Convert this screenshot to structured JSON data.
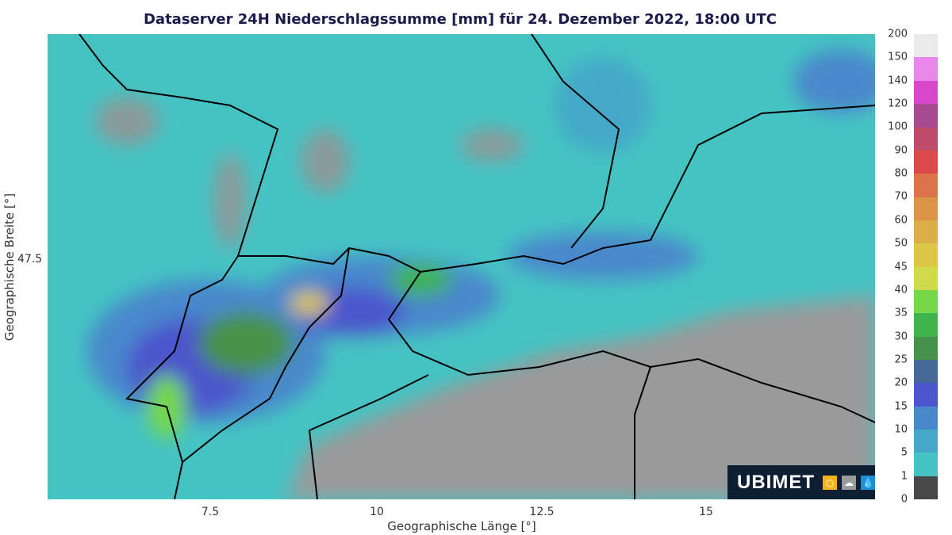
{
  "title": "Dataserver 24H Niederschlagssumme [mm] für 24. Dezember 2022, 18:00 UTC",
  "x_axis": {
    "label": "Geographische Länge [°]",
    "ticks": [
      "7.5",
      "10",
      "12.5",
      "15"
    ]
  },
  "y_axis": {
    "label": "Geographische Breite [°]",
    "ticks": [
      "47.5"
    ]
  },
  "colorbar": {
    "labels": [
      "0",
      "1",
      "5",
      "10",
      "15",
      "20",
      "25",
      "30",
      "35",
      "40",
      "45",
      "50",
      "60",
      "70",
      "80",
      "90",
      "100",
      "120",
      "140",
      "150",
      "200"
    ],
    "colors": [
      "#484848",
      "#45c3c3",
      "#45a8c8",
      "#4a88cc",
      "#4b55cc",
      "#456898",
      "#46924a",
      "#40b44a",
      "#74d848",
      "#cfdb4a",
      "#dcc64a",
      "#dcae48",
      "#dc9448",
      "#dc744b",
      "#dc4b4b",
      "#c04a6a",
      "#a84a90",
      "#d848cc",
      "#e888e8",
      "#eaeaea"
    ]
  },
  "map": {
    "no_precip_color": "#9a9a9a",
    "border_color": "#000000"
  },
  "logo": {
    "text": "UBIMET",
    "icons": [
      "sun-icon",
      "cloud-icon",
      "drop-icon"
    ],
    "colors": [
      "#f3b21c",
      "#9a9a9a",
      "#1c8fd8"
    ]
  }
}
